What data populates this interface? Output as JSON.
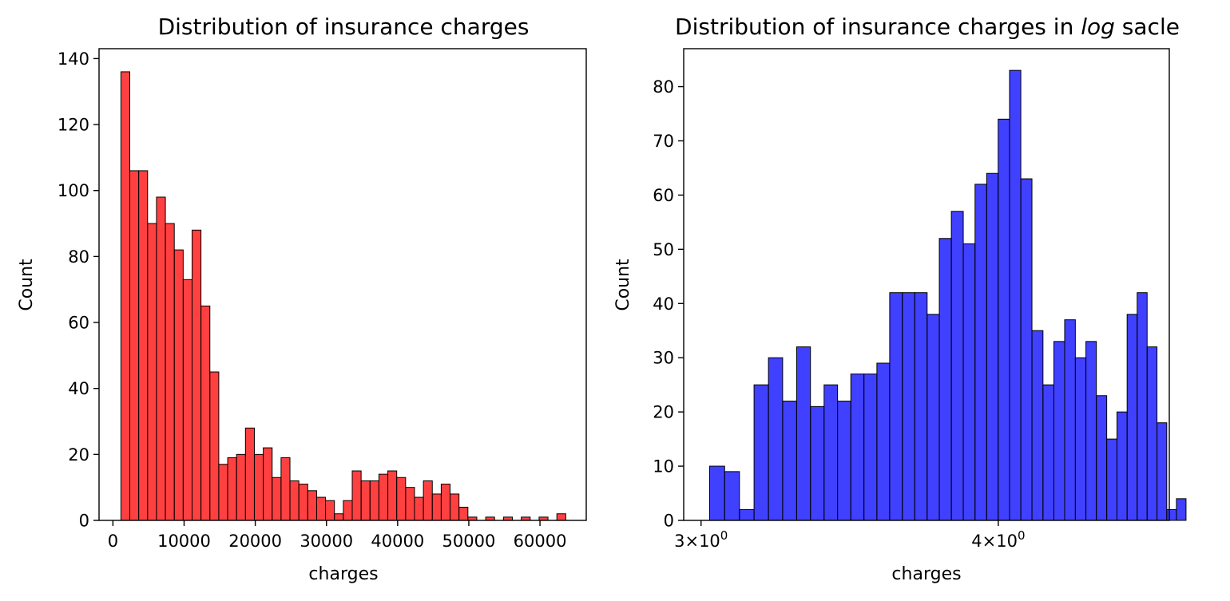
{
  "chart_data": [
    {
      "type": "bar",
      "title": "Distribution of insurance charges",
      "xlabel": "charges",
      "ylabel": "Count",
      "bar_color": "#ff0000",
      "bar_alpha": 0.75,
      "xlim": [
        -1950,
        66500
      ],
      "ylim": [
        0,
        143
      ],
      "xticks": [
        0,
        10000,
        20000,
        30000,
        40000,
        50000,
        60000
      ],
      "xtick_labels": [
        "0",
        "10000",
        "20000",
        "30000",
        "40000",
        "50000",
        "60000"
      ],
      "yticks": [
        0,
        20,
        40,
        60,
        80,
        100,
        120,
        140
      ],
      "ytick_labels": [
        "0",
        "20",
        "40",
        "60",
        "80",
        "100",
        "120",
        "140"
      ],
      "bin_start": 1121.87,
      "bin_width": 1250.0,
      "counts": [
        136,
        106,
        106,
        90,
        98,
        90,
        82,
        73,
        88,
        65,
        45,
        17,
        19,
        20,
        28,
        20,
        22,
        13,
        19,
        12,
        11,
        9,
        7,
        6,
        2,
        6,
        15,
        12,
        12,
        14,
        15,
        13,
        10,
        7,
        12,
        8,
        11,
        8,
        4,
        1,
        0,
        1,
        0,
        1,
        0,
        1,
        0,
        1,
        0,
        2
      ]
    },
    {
      "type": "bar",
      "title_prefix": "Distribution of insurance charges in ",
      "title_italic": "log",
      "title_suffix": " sacle",
      "xlabel": "charges",
      "ylabel": "Count",
      "xscale": "log",
      "bar_color": "#0000ff",
      "bar_alpha": 0.75,
      "xlim": [
        2.95,
        4.72
      ],
      "ylim": [
        0,
        87
      ],
      "xticks": [
        3,
        4
      ],
      "xtick_labels": [
        {
          "base": "3×10",
          "exp": "0"
        },
        {
          "base": "4×10",
          "exp": "0"
        }
      ],
      "yticks": [
        0,
        10,
        20,
        30,
        40,
        50,
        60,
        70,
        80
      ],
      "ytick_labels": [
        "0",
        "10",
        "20",
        "30",
        "40",
        "50",
        "60",
        "70",
        "80"
      ],
      "bin_start": 3.025,
      "bin_width": 0.0443,
      "counts": [
        10,
        9,
        2,
        25,
        30,
        22,
        32,
        21,
        25,
        22,
        27,
        27,
        29,
        42,
        42,
        42,
        38,
        52,
        57,
        51,
        62,
        64,
        74,
        83,
        63,
        35,
        25,
        33,
        37,
        30,
        33,
        23,
        15,
        20,
        38,
        42,
        32,
        18,
        2,
        4
      ]
    }
  ]
}
